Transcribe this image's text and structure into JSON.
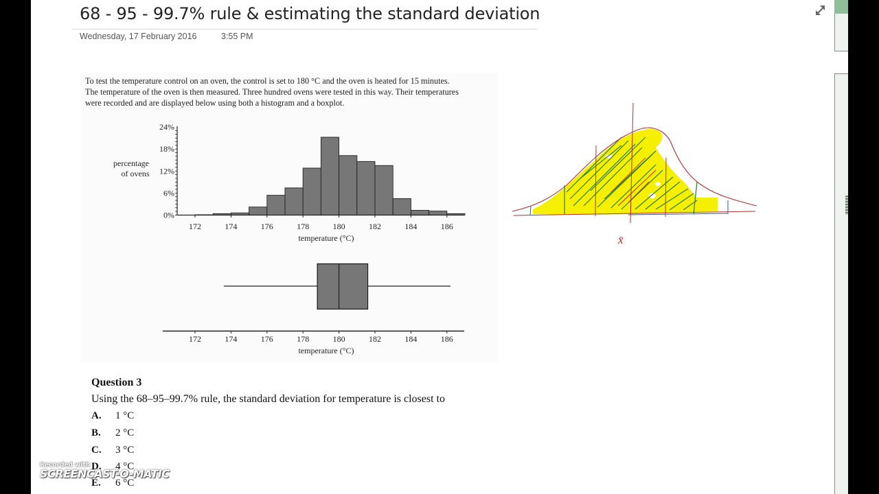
{
  "page": {
    "title": "68 - 95 - 99.7% rule & estimating the standard deviation",
    "date": "Wednesday, 17 February 2016",
    "time": "3:55 PM"
  },
  "icons": {
    "expand": "expand-diagonal-arrows-icon"
  },
  "clipping": {
    "intro_lines": [
      "To test the temperature control on an oven, the control is set to 180 °C and the oven is heated for 15 minutes.",
      "The temperature of the oven is then measured. Three hundred ovens were tested in this way. Their temperatures",
      "were recorded and are displayed below using both a histogram and a boxplot."
    ]
  },
  "chart_data": [
    {
      "type": "bar",
      "title": "",
      "xlabel": "temperature (°C)",
      "ylabel": "percentage of ovens",
      "ylabel_lines": [
        "percentage",
        "of ovens"
      ],
      "y_ticks": [
        "0%",
        "6%",
        "12%",
        "18%",
        "24%"
      ],
      "x_ticks": [
        "172",
        "174",
        "176",
        "178",
        "180",
        "182",
        "184",
        "186"
      ],
      "ylim": [
        0,
        24
      ],
      "xlim": [
        170,
        187
      ],
      "bin_edges": [
        172,
        173,
        174,
        175,
        176,
        177,
        178,
        179,
        180,
        181,
        182,
        183,
        184,
        185,
        186,
        187
      ],
      "values": [
        0.1,
        0.4,
        0.6,
        2.2,
        5.4,
        7.4,
        12.8,
        21.2,
        16.2,
        14.6,
        13.5,
        4.5,
        1.3,
        1.1,
        0.4
      ],
      "bar_color": "#777777",
      "grid": false
    },
    {
      "type": "boxplot",
      "xlabel": "temperature (°C)",
      "x_ticks": [
        "172",
        "174",
        "176",
        "178",
        "180",
        "182",
        "184",
        "186"
      ],
      "min": 173.6,
      "q1": 178.8,
      "median": 180,
      "q3": 181.6,
      "max": 186.2,
      "box_color": "#777777"
    }
  ],
  "question": {
    "title": "Question 3",
    "text": "Using the 68–95–99.7% rule, the standard deviation for temperature is closest to",
    "options": [
      {
        "letter": "A.",
        "value": "1 °C"
      },
      {
        "letter": "B.",
        "value": "2 °C"
      },
      {
        "letter": "C.",
        "value": "3 °C"
      },
      {
        "letter": "D.",
        "value": "4 °C"
      },
      {
        "letter": "E.",
        "value": "6 °C"
      }
    ]
  },
  "ink_sketch": {
    "description": "hand-drawn normal curve with yellow highlight, hatching and sigma markers",
    "label": "x̄",
    "colors": {
      "curve": "#b03030",
      "highlight": "#f5f000",
      "hatch_green": "#2e7d32",
      "hatch_red": "#c62828",
      "blue": "#3a5a8a"
    }
  },
  "watermark": {
    "line1": "Recorded with",
    "line2": "SCREENCAST-O-MATIC"
  }
}
